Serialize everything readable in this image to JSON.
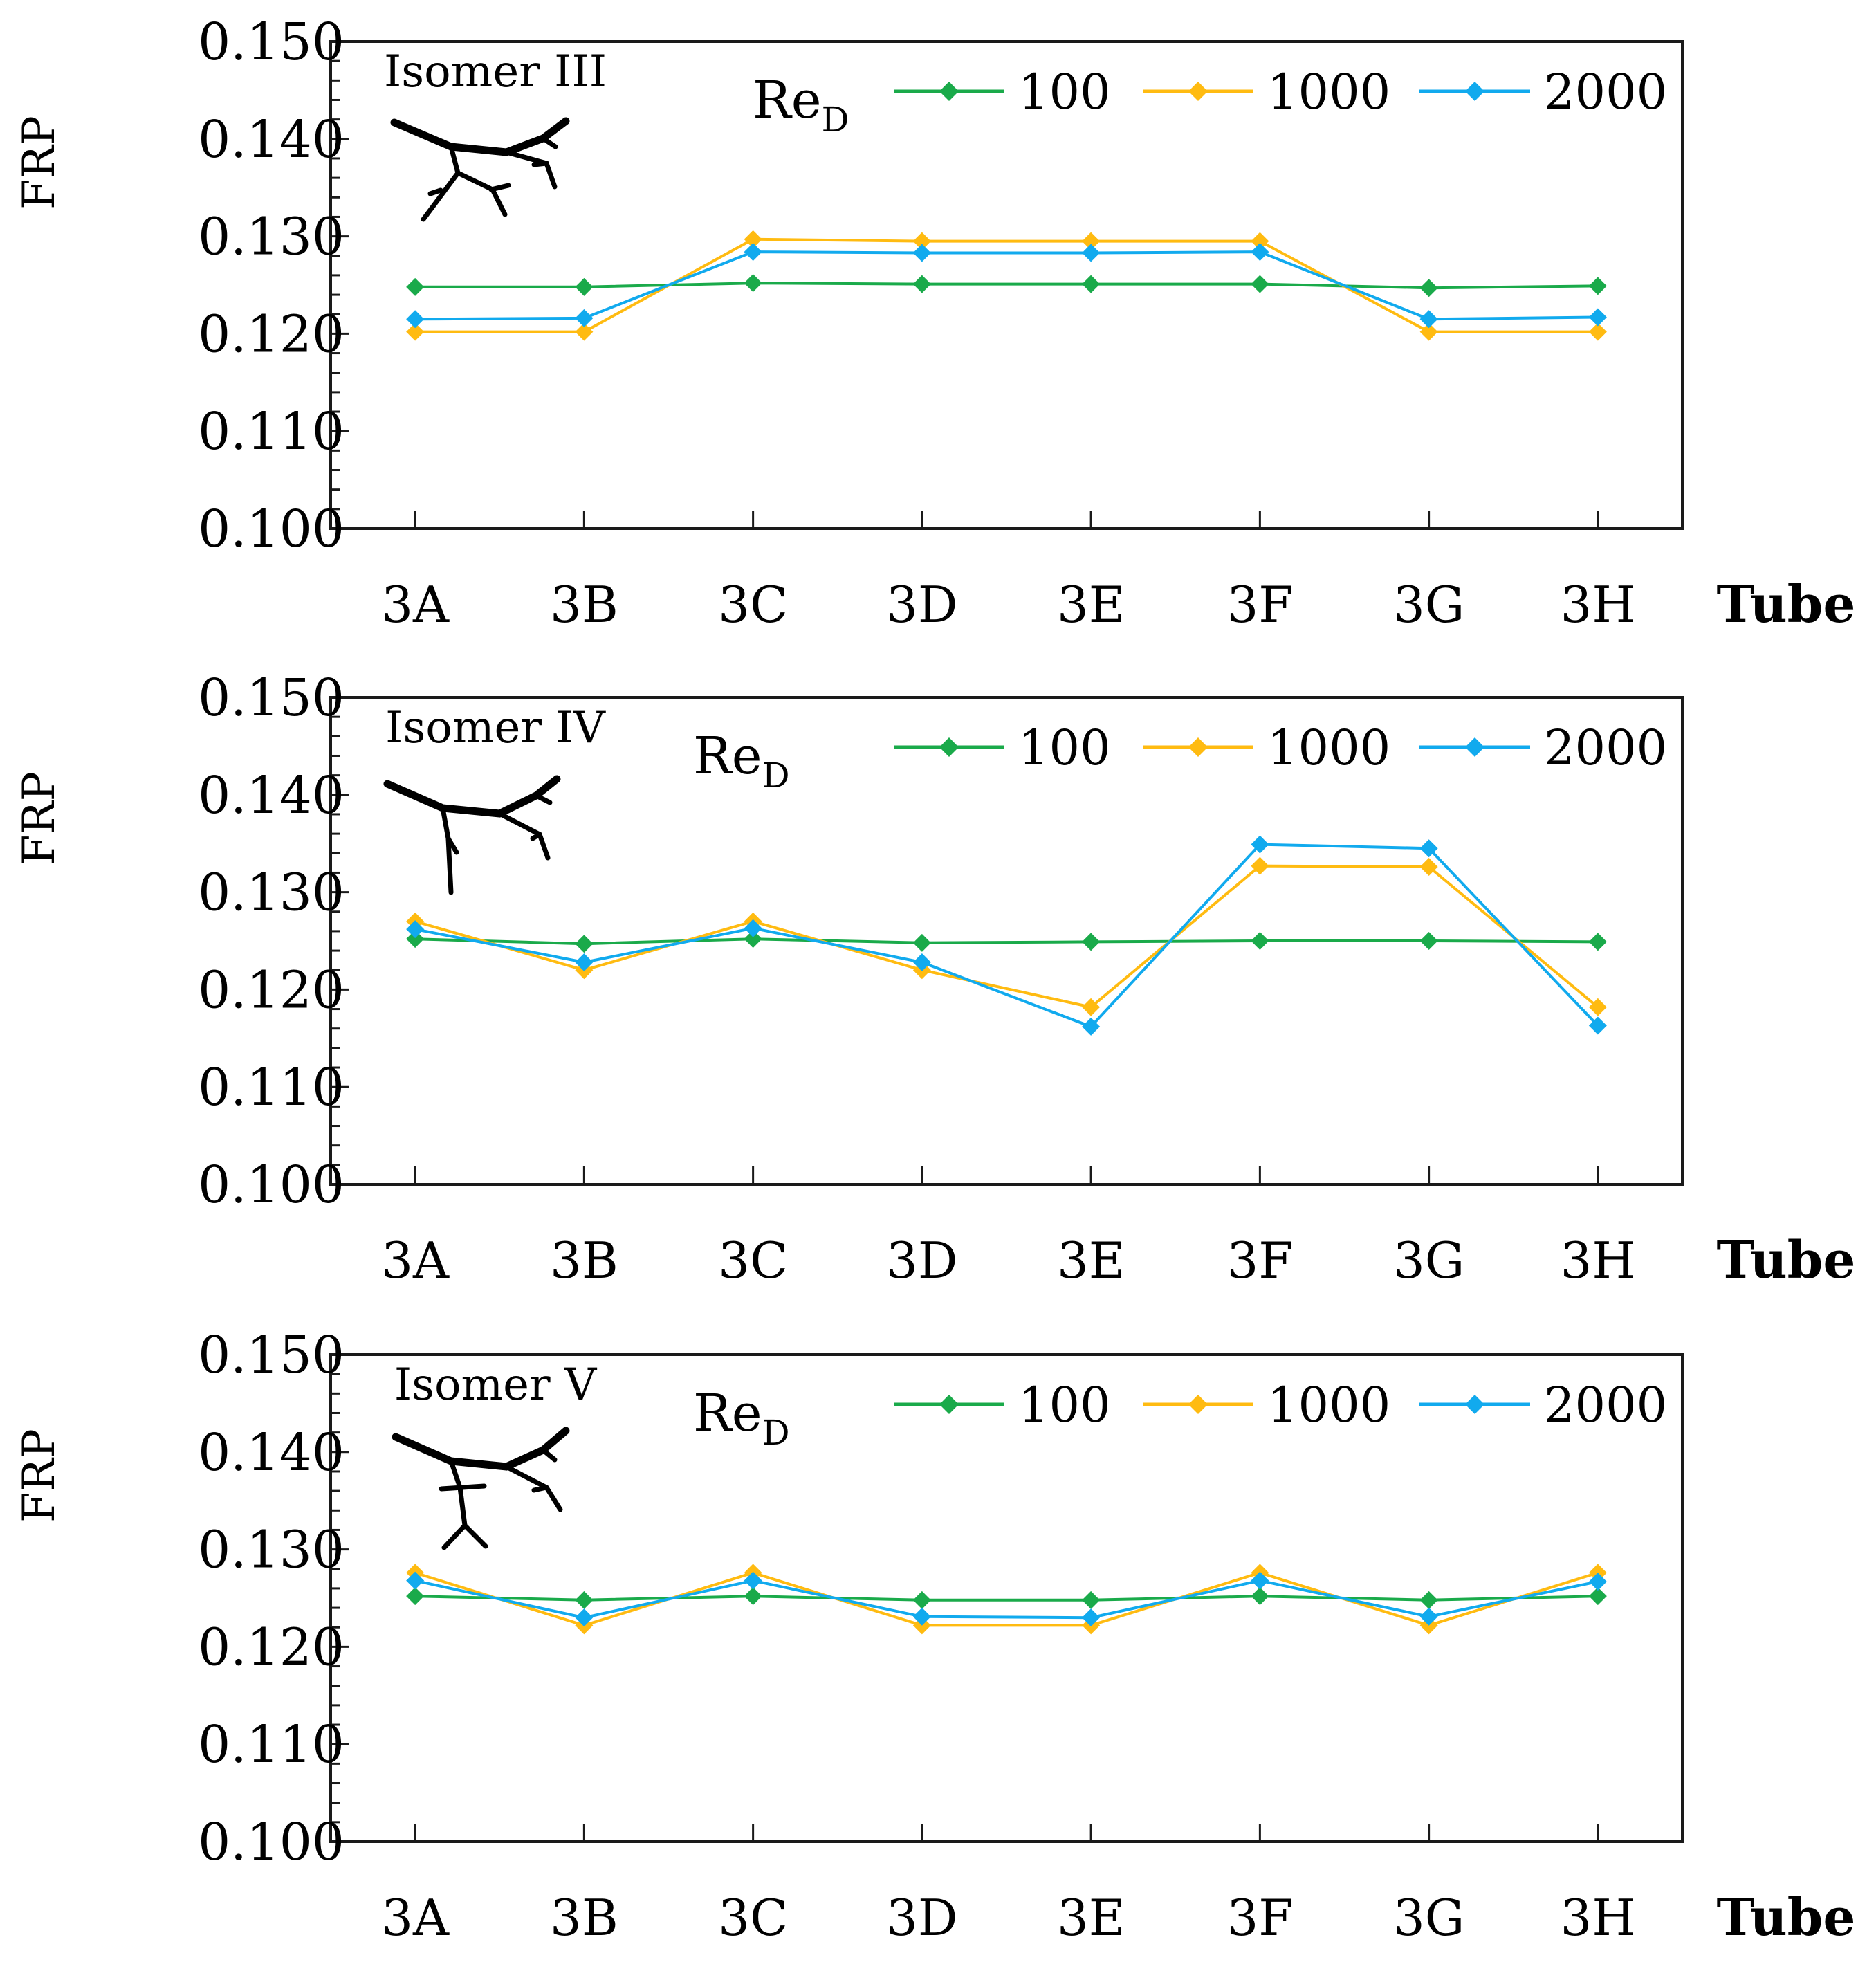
{
  "colors": {
    "100": "#1aaa4a",
    "1000": "#ffbb11",
    "2000": "#11aaee"
  },
  "chart_data": [
    {
      "type": "line",
      "inset_label": "Isomer III",
      "xlabel": "Tube",
      "ylabel": "FRP",
      "legend_title": "Re",
      "legend_title_sub": "D",
      "ylim": [
        0.1,
        0.15
      ],
      "yticks": [
        "0.150",
        "0.140",
        "0.130",
        "0.120",
        "0.110",
        "0.100"
      ],
      "categories": [
        "3A",
        "3B",
        "3C",
        "3D",
        "3E",
        "3F",
        "3G",
        "3H"
      ],
      "series": [
        {
          "name": "100",
          "colorKey": "100",
          "values": [
            0.1248,
            0.1248,
            0.1252,
            0.1251,
            0.1251,
            0.1251,
            0.1247,
            0.1249
          ]
        },
        {
          "name": "1000",
          "colorKey": "1000",
          "values": [
            0.1202,
            0.1202,
            0.1297,
            0.1295,
            0.1295,
            0.1295,
            0.1202,
            0.1202
          ]
        },
        {
          "name": "2000",
          "colorKey": "2000",
          "values": [
            0.1215,
            0.1216,
            0.1284,
            0.1283,
            0.1283,
            0.1284,
            0.1215,
            0.1217
          ]
        }
      ]
    },
    {
      "type": "line",
      "inset_label": "Isomer IV",
      "xlabel": "Tube",
      "ylabel": "FRP",
      "legend_title": "Re",
      "legend_title_sub": "D",
      "ylim": [
        0.1,
        0.15
      ],
      "yticks": [
        "0.150",
        "0.140",
        "0.130",
        "0.120",
        "0.110",
        "0.100"
      ],
      "categories": [
        "3A",
        "3B",
        "3C",
        "3D",
        "3E",
        "3F",
        "3G",
        "3H"
      ],
      "series": [
        {
          "name": "100",
          "colorKey": "100",
          "values": [
            0.1252,
            0.1247,
            0.1252,
            0.1248,
            0.1249,
            0.125,
            0.125,
            0.1249
          ]
        },
        {
          "name": "1000",
          "colorKey": "1000",
          "values": [
            0.127,
            0.122,
            0.127,
            0.122,
            0.1182,
            0.1327,
            0.1326,
            0.1182
          ]
        },
        {
          "name": "2000",
          "colorKey": "2000",
          "values": [
            0.1262,
            0.1228,
            0.1263,
            0.1228,
            0.1162,
            0.1349,
            0.1345,
            0.1163
          ]
        }
      ]
    },
    {
      "type": "line",
      "inset_label": "Isomer V",
      "xlabel": "Tube",
      "ylabel": "FRP",
      "legend_title": "Re",
      "legend_title_sub": "D",
      "ylim": [
        0.1,
        0.15
      ],
      "yticks": [
        "0.150",
        "0.140",
        "0.130",
        "0.120",
        "0.110",
        "0.100"
      ],
      "categories": [
        "3A",
        "3B",
        "3C",
        "3D",
        "3E",
        "3F",
        "3G",
        "3H"
      ],
      "series": [
        {
          "name": "100",
          "colorKey": "100",
          "values": [
            0.1252,
            0.1248,
            0.1252,
            0.1248,
            0.1248,
            0.1252,
            0.1248,
            0.1252
          ]
        },
        {
          "name": "1000",
          "colorKey": "1000",
          "values": [
            0.1276,
            0.1222,
            0.1276,
            0.1222,
            0.1222,
            0.1276,
            0.1222,
            0.1276
          ]
        },
        {
          "name": "2000",
          "colorKey": "2000",
          "values": [
            0.1268,
            0.123,
            0.1268,
            0.1231,
            0.123,
            0.1268,
            0.1231,
            0.1267
          ]
        }
      ]
    }
  ]
}
